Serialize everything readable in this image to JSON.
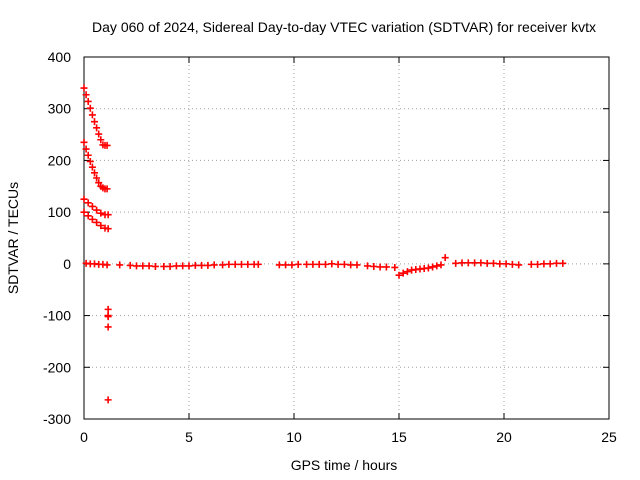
{
  "chart_data": {
    "type": "scatter",
    "title": "Day 060 of 2024, Sidereal Day-to-day VTEC variation (SDTVAR) for receiver kvtx",
    "xlabel": "GPS time / hours",
    "ylabel": "SDTVAR / TECUs",
    "xlim": [
      0,
      25
    ],
    "ylim": [
      -300,
      400
    ],
    "xticks": [
      "0",
      "5",
      "10",
      "15",
      "20",
      "25"
    ],
    "yticks": [
      "-300",
      "-200",
      "-100",
      "0",
      "100",
      "200",
      "300",
      "400"
    ],
    "grid": true,
    "marker": "+",
    "color": "#ff0000",
    "series": [
      {
        "x": [
          0.0,
          0.1,
          0.2,
          0.3,
          0.4,
          0.5,
          0.6,
          0.7,
          0.8,
          0.9,
          1.0,
          1.1,
          0.0,
          0.1,
          0.2,
          0.3,
          0.4,
          0.5,
          0.6,
          0.7,
          0.8,
          0.9,
          1.0,
          1.1,
          0.0,
          0.2,
          0.4,
          0.6,
          0.8,
          1.0,
          1.15,
          0.0,
          0.2,
          0.4,
          0.6,
          0.8,
          1.0,
          1.15,
          0.1,
          0.3,
          0.5,
          0.7,
          0.9,
          1.1,
          1.7,
          2.2,
          2.5,
          2.8,
          3.1,
          3.4,
          3.8,
          4.1,
          4.4,
          4.7,
          5.0,
          5.3,
          5.6,
          5.9,
          6.2,
          6.6,
          6.9,
          7.2,
          7.5,
          7.8,
          8.1,
          8.3,
          9.3,
          9.6,
          9.9,
          10.2,
          10.6,
          10.9,
          11.2,
          11.5,
          11.8,
          12.1,
          12.4,
          12.7,
          13.0,
          13.5,
          13.8,
          14.1,
          14.4,
          14.8,
          15.0,
          15.2,
          15.4,
          15.6,
          15.8,
          16.0,
          16.2,
          16.4,
          16.6,
          16.8,
          17.0,
          17.2,
          17.7,
          18.0,
          18.3,
          18.6,
          18.9,
          19.2,
          19.5,
          19.8,
          20.1,
          20.4,
          20.7,
          21.3,
          21.6,
          21.9,
          22.2,
          22.5,
          22.8,
          1.15,
          1.15,
          1.15,
          1.15,
          1.15
        ],
        "y": [
          340,
          327,
          314,
          301,
          288,
          275,
          263,
          251,
          240,
          230,
          229,
          229,
          235,
          222,
          210,
          198,
          187,
          176,
          166,
          157,
          150,
          147,
          145,
          145,
          125,
          118,
          111,
          104,
          98,
          95,
          95,
          100,
          93,
          86,
          80,
          74,
          69,
          68,
          1,
          0,
          0,
          -1,
          -1,
          -2,
          -2,
          -3,
          -4,
          -4,
          -4,
          -5,
          -5,
          -5,
          -4,
          -4,
          -4,
          -3,
          -3,
          -3,
          -2,
          -2,
          -1,
          -1,
          -1,
          -1,
          -1,
          -1,
          -2,
          -2,
          -2,
          -1,
          -1,
          -1,
          -1,
          -1,
          0,
          -1,
          -1,
          -2,
          -2,
          -4,
          -5,
          -6,
          -6,
          -7,
          -22,
          -18,
          -15,
          -12,
          -11,
          -10,
          -9,
          -8,
          -6,
          -4,
          -2,
          12,
          1,
          2,
          2,
          2,
          2,
          1,
          1,
          0,
          0,
          -1,
          -2,
          -1,
          -1,
          0,
          0,
          1,
          1,
          -88,
          -100,
          -102,
          -122,
          -263
        ]
      }
    ]
  }
}
